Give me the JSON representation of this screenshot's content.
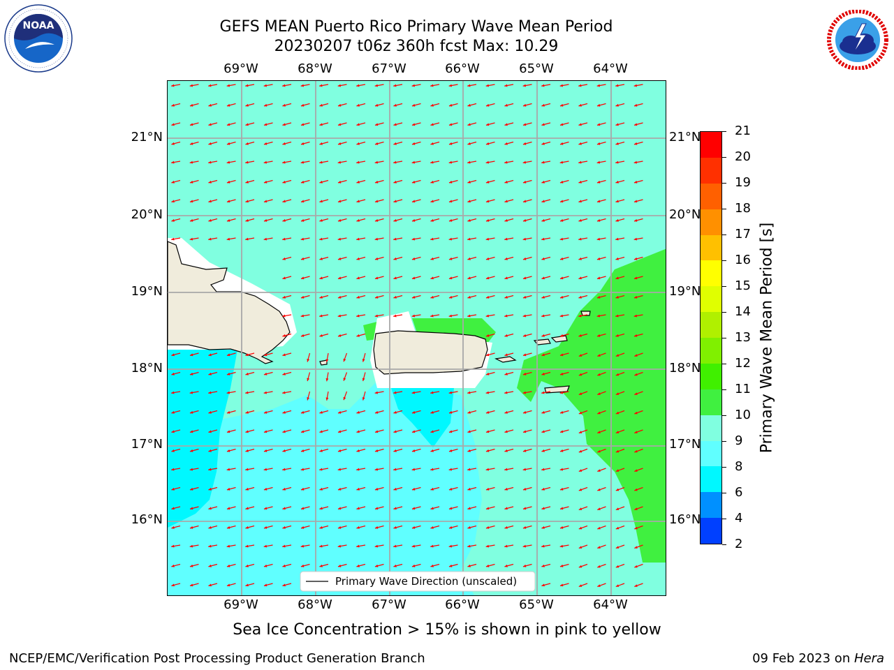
{
  "title_line1": "GEFS MEAN Puerto Rico Primary Wave Mean Period",
  "title_line2": "20230207 t06z 360h fcst   Max: 10.29",
  "logos": {
    "noaa": {
      "text": "NOAA",
      "ring_text": "NATIONAL OCEANIC AND ATMOSPHERIC ADMINISTRATION · U.S. DEPARTMENT OF COMMERCE"
    },
    "nws": {
      "ring_text": "NATIONAL WEATHER SERVICE"
    }
  },
  "map": {
    "lon_labels": [
      "69°W",
      "68°W",
      "67°W",
      "66°W",
      "65°W",
      "64°W"
    ],
    "lat_labels": [
      "21°N",
      "20°N",
      "19°N",
      "18°N",
      "17°N",
      "16°N"
    ],
    "legend_label": "Primary Wave Direction (unscaled)",
    "arrow_color": "#ff0000",
    "land_color": "#f0ecdc"
  },
  "colorbar": {
    "label": "Primary Wave Mean Period [s]",
    "ticks": [
      "21",
      "20",
      "19",
      "18",
      "17",
      "16",
      "15",
      "14",
      "13",
      "12",
      "11",
      "10",
      "9",
      "8",
      "6",
      "4",
      "2"
    ],
    "colors_top_to_bottom": [
      "#ff0000",
      "#ff3000",
      "#ff6000",
      "#ff9000",
      "#ffc000",
      "#ffff00",
      "#e0ff00",
      "#b0f000",
      "#80f000",
      "#40f000",
      "#40f040",
      "#80ffe0",
      "#60ffff",
      "#00f8ff",
      "#0090ff",
      "#0040ff",
      "#0000ff"
    ]
  },
  "sea_ice_note": "Sea Ice Concentration > 15% is shown in pink to yellow",
  "footer_left": "NCEP/EMC/Verification Post Processing Product Generation Branch",
  "footer_right_prefix": "09 Feb 2023 on ",
  "footer_right_host": "Hera"
}
